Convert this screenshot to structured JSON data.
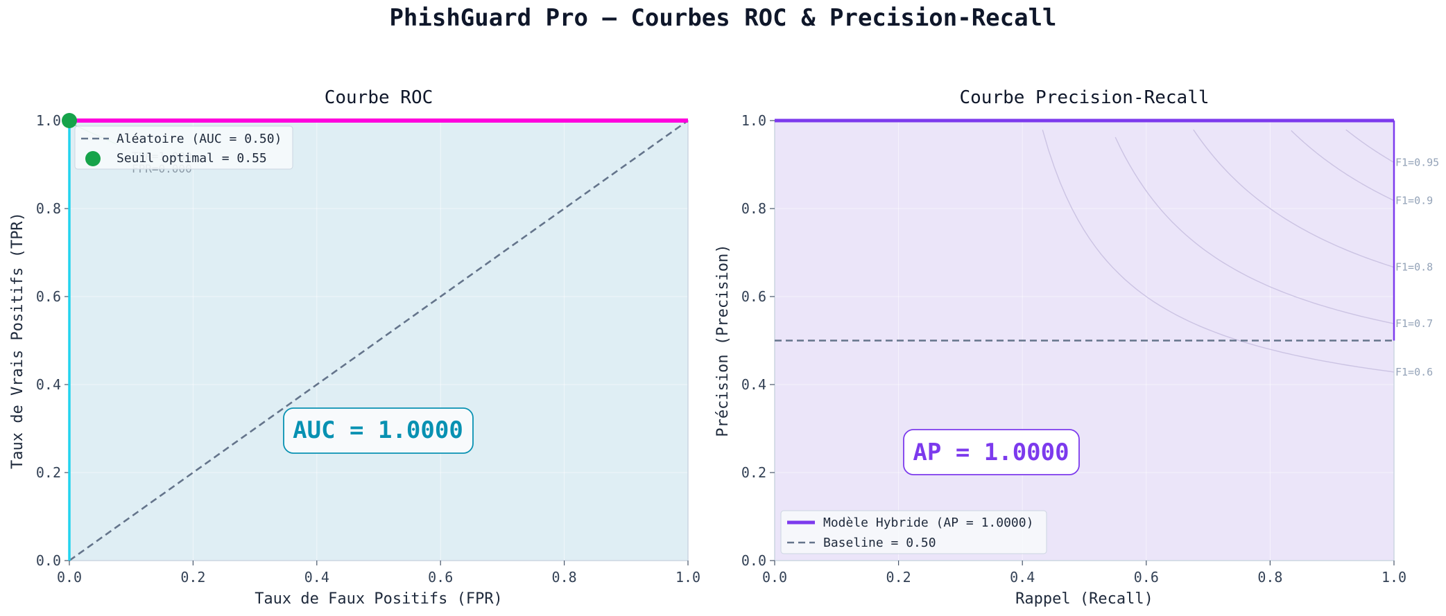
{
  "suptitle": "PhishGuard Pro — Courbes ROC & Precision-Recall",
  "colors": {
    "roc_curve": "#ff00dd",
    "roc_vertical": "#22d3ee",
    "roc_fill": "#dfeef4",
    "baseline": "#64748b",
    "optimal_point": "#16a34a",
    "auc_text": "#0891b2",
    "pr_curve": "#7c3aed",
    "pr_fill": "#ebe5f9",
    "iso": "#cbc3e3"
  },
  "chart_data": [
    {
      "type": "line",
      "title": "Courbe ROC",
      "xlabel": "Taux de Faux Positifs (FPR)",
      "ylabel": "Taux de Vrais Positifs (TPR)",
      "xlim": [
        0,
        1
      ],
      "ylim": [
        0,
        1
      ],
      "xticks": [
        "0.0",
        "0.2",
        "0.4",
        "0.6",
        "0.8",
        "1.0"
      ],
      "yticks": [
        "0.0",
        "0.2",
        "0.4",
        "0.6",
        "0.8",
        "1.0"
      ],
      "series": [
        {
          "x": [
            0,
            0,
            1
          ],
          "y": [
            0,
            1,
            1
          ]
        },
        {
          "name": "Aléatoire (AUC = 0.50)",
          "x": [
            0,
            1
          ],
          "y": [
            0,
            1
          ],
          "style": "dashed"
        }
      ],
      "optimal_point": {
        "label": "Seuil optimal = 0.55",
        "x": 0.0,
        "y": 1.0,
        "annotation": [
          "TPR=1.000",
          "FPR=0.000"
        ]
      },
      "metric_box": "AUC = 1.0000",
      "legend": [
        "Aléatoire (AUC = 0.50)",
        "Seuil optimal = 0.55"
      ],
      "legend_position": "upper-left",
      "grid": true
    },
    {
      "type": "line",
      "title": "Courbe Precision-Recall",
      "xlabel": "Rappel (Recall)",
      "ylabel": "Précision (Precision)",
      "xlim": [
        0,
        1
      ],
      "ylim": [
        0,
        1
      ],
      "xticks": [
        "0.0",
        "0.2",
        "0.4",
        "0.6",
        "0.8",
        "1.0"
      ],
      "yticks": [
        "0.0",
        "0.2",
        "0.4",
        "0.6",
        "0.8",
        "1.0"
      ],
      "series": [
        {
          "name": "Modèle Hybride (AP = 1.0000)",
          "x": [
            0,
            1,
            1
          ],
          "y": [
            1,
            1,
            0.5
          ]
        },
        {
          "name": "Baseline = 0.50",
          "x": [
            0,
            1
          ],
          "y": [
            0.5,
            0.5
          ],
          "style": "dashed"
        }
      ],
      "iso_f1": [
        0.6,
        0.7,
        0.8,
        0.9,
        0.95
      ],
      "iso_f1_labels": [
        "F1=0.6",
        "F1=0.7",
        "F1=0.8",
        "F1=0.9",
        "F1=0.95"
      ],
      "metric_box": "AP = 1.0000",
      "legend": [
        "Modèle Hybride (AP = 1.0000)",
        "Baseline = 0.50"
      ],
      "legend_position": "lower-left",
      "grid": true
    }
  ]
}
